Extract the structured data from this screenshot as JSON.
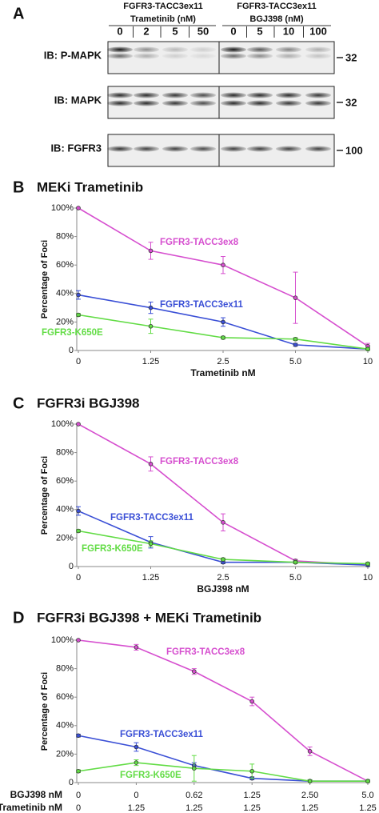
{
  "blot": {
    "panel": "A",
    "groups": [
      {
        "name": "FGFR3-TACC3ex11",
        "drug": "Trametinib (nM)",
        "lanes": [
          "0",
          "2",
          "5",
          "50"
        ]
      },
      {
        "name": "FGFR3-TACC3ex11",
        "drug": "BGJ398 (nM)",
        "lanes": [
          "0",
          "5",
          "10",
          "100"
        ]
      }
    ],
    "rows": [
      {
        "label": "IB: P-MAPK",
        "marker": "32"
      },
      {
        "label": "IB: MAPK",
        "marker": "32"
      },
      {
        "label": "IB: FGFR3",
        "marker": "100"
      }
    ]
  },
  "chart_data": [
    {
      "type": "line",
      "panel": "B",
      "title": "MEKi Trametinib",
      "y_label": "Percentage of Foci",
      "x_label": "Trametinib nM",
      "categories": [
        "0",
        "1.25",
        "2.5",
        "5.0",
        "10"
      ],
      "ylim": [
        0,
        100
      ],
      "yticks": [
        0,
        {
          "value": 20,
          "label": "20%"
        },
        {
          "value": 40,
          "label": "40%"
        },
        {
          "value": 60,
          "label": "60%"
        },
        {
          "value": 80,
          "label": "80%"
        },
        {
          "value": 100,
          "label": "100%"
        }
      ],
      "grid": false,
      "series": [
        {
          "name": "FGFR3-TACC3ex8",
          "color": "#d64fcf",
          "values": [
            100,
            70,
            60,
            37,
            3
          ],
          "errors": [
            0,
            6,
            6,
            18,
            2
          ]
        },
        {
          "name": "FGFR3-TACC3ex11",
          "color": "#3a4fd6",
          "values": [
            39,
            30,
            20,
            4,
            1
          ],
          "errors": [
            3,
            4,
            3,
            1,
            1
          ]
        },
        {
          "name": "FGFR3-K650E",
          "color": "#62dc45",
          "values": [
            25,
            17,
            9,
            8,
            1
          ],
          "errors": [
            1,
            5,
            1,
            1,
            1
          ]
        }
      ]
    },
    {
      "type": "line",
      "panel": "C",
      "title": "FGFR3i BGJ398",
      "y_label": "Percentage of Foci",
      "x_label": "BGJ398 nM",
      "categories": [
        "0",
        "1.25",
        "2.5",
        "5.0",
        "10"
      ],
      "ylim": [
        0,
        100
      ],
      "yticks": [
        0,
        {
          "value": 20,
          "label": "20%"
        },
        {
          "value": 40,
          "label": "40%"
        },
        {
          "value": 60,
          "label": "60%"
        },
        {
          "value": 80,
          "label": "80%"
        },
        {
          "value": 100,
          "label": "100%"
        }
      ],
      "grid": false,
      "series": [
        {
          "name": "FGFR3-TACC3ex8",
          "color": "#d64fcf",
          "values": [
            100,
            72,
            31,
            4,
            1
          ],
          "errors": [
            0,
            5,
            6,
            1,
            1
          ]
        },
        {
          "name": "FGFR3-TACC3ex11",
          "color": "#3a4fd6",
          "values": [
            39,
            17,
            3,
            3,
            1
          ],
          "errors": [
            3,
            4,
            1,
            1,
            1
          ]
        },
        {
          "name": "FGFR3-K650E",
          "color": "#62dc45",
          "values": [
            25,
            16,
            5,
            3,
            2
          ],
          "errors": [
            1,
            2,
            1,
            1,
            1
          ]
        }
      ]
    },
    {
      "type": "line",
      "panel": "D",
      "title": "FGFR3i BGJ398 + MEKi Trametinib",
      "y_label": "Percentage of Foci",
      "x_label": "BGJ398 nM",
      "x2_label": "Trametinib nM",
      "categories": [
        "0",
        "0",
        "0.62",
        "1.25",
        "2.50",
        "5.0"
      ],
      "categories2": [
        "0",
        "1.25",
        "1.25",
        "1.25",
        "1.25",
        "1.25"
      ],
      "ylim": [
        0,
        100
      ],
      "yticks": [
        0,
        {
          "value": 20,
          "label": "20%"
        },
        {
          "value": 40,
          "label": "40%"
        },
        {
          "value": 60,
          "label": "60%"
        },
        {
          "value": 80,
          "label": "80%"
        },
        {
          "value": 100,
          "label": "100%"
        }
      ],
      "grid": false,
      "series": [
        {
          "name": "FGFR3-TACC3ex8",
          "color": "#d64fcf",
          "values": [
            100,
            95,
            78,
            57,
            22,
            1
          ],
          "errors": [
            0,
            2,
            2,
            3,
            3,
            1
          ]
        },
        {
          "name": "FGFR3-TACC3ex11",
          "color": "#3a4fd6",
          "values": [
            33,
            25,
            12,
            3,
            1,
            1
          ],
          "errors": [
            1,
            3,
            2,
            1,
            1,
            1
          ]
        },
        {
          "name": "FGFR3-K650E",
          "color": "#62dc45",
          "values": [
            8,
            14,
            10,
            8,
            1,
            1
          ],
          "errors": [
            1,
            2,
            9,
            5,
            1,
            1
          ]
        }
      ]
    }
  ]
}
